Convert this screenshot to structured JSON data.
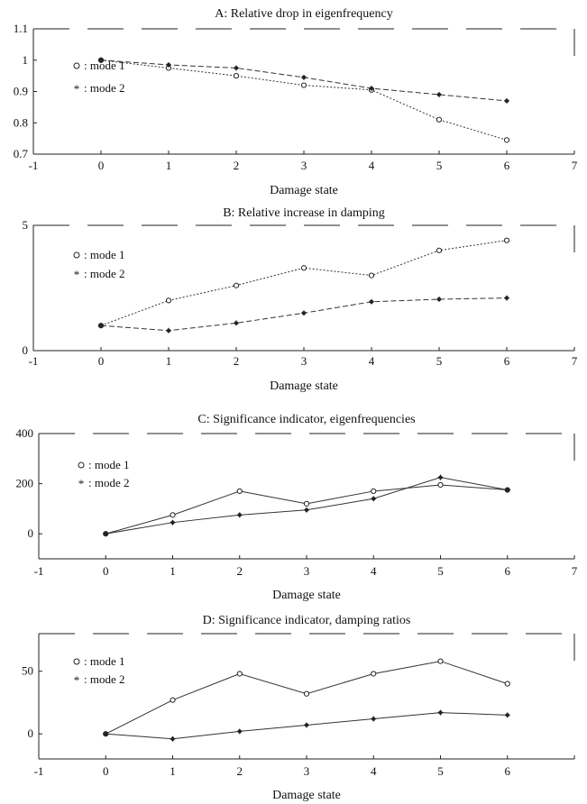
{
  "chart_data": [
    {
      "id": "A",
      "type": "line",
      "title": "A: Relative drop in eigenfrequency",
      "xlabel": "Damage state",
      "ylabel": "",
      "xlim": [
        -1,
        7
      ],
      "ylim": [
        0.7,
        1.1
      ],
      "xticks": [
        "-1",
        "0",
        "1",
        "2",
        "3",
        "4",
        "5",
        "6",
        "7"
      ],
      "yticks": [
        "0.7",
        "0.8",
        "0.9",
        "1",
        "1.1"
      ],
      "ytick_values": [
        0.7,
        0.8,
        0.9,
        1.0,
        1.1
      ],
      "legend": [
        {
          "marker": "o",
          "text": ": mode 1"
        },
        {
          "marker": "*",
          "text": ": mode 2"
        }
      ],
      "line_style": "dashed",
      "series": [
        {
          "marker": "o",
          "x": [
            0,
            1,
            2,
            3,
            4,
            5,
            6
          ],
          "values": [
            1.0,
            0.975,
            0.95,
            0.92,
            0.905,
            0.81,
            0.745
          ]
        },
        {
          "marker": "*",
          "x": [
            0,
            1,
            2,
            3,
            4,
            5,
            6
          ],
          "values": [
            1.0,
            0.985,
            0.975,
            0.945,
            0.91,
            0.89,
            0.87
          ]
        }
      ]
    },
    {
      "id": "B",
      "type": "line",
      "title": "B: Relative increase in damping",
      "xlabel": "Damage state",
      "ylabel": "",
      "xlim": [
        -1,
        7
      ],
      "ylim": [
        0,
        5
      ],
      "xticks": [
        "-1",
        "0",
        "1",
        "2",
        "3",
        "4",
        "5",
        "6",
        "7"
      ],
      "yticks": [
        "0",
        "5"
      ],
      "ytick_values": [
        0,
        5
      ],
      "legend": [
        {
          "marker": "o",
          "text": ": mode 1"
        },
        {
          "marker": "*",
          "text": ": mode 2"
        }
      ],
      "line_style": "dashed",
      "series": [
        {
          "marker": "o",
          "x": [
            0,
            1,
            2,
            3,
            4,
            5,
            6
          ],
          "values": [
            1.0,
            2.0,
            2.6,
            3.3,
            3.0,
            4.0,
            4.4
          ]
        },
        {
          "marker": "*",
          "x": [
            0,
            1,
            2,
            3,
            4,
            5,
            6
          ],
          "values": [
            1.0,
            0.8,
            1.1,
            1.5,
            1.95,
            2.05,
            2.1
          ]
        }
      ]
    },
    {
      "id": "C",
      "type": "line",
      "title": "C: Significance indicator, eigenfrequencies",
      "xlabel": "Damage state",
      "ylabel": "",
      "xlim": [
        -1,
        7
      ],
      "ylim": [
        -100,
        400
      ],
      "xticks": [
        "-1",
        "0",
        "1",
        "2",
        "3",
        "4",
        "5",
        "6",
        "7"
      ],
      "yticks": [
        "0",
        "200",
        "400"
      ],
      "ytick_values": [
        0,
        200,
        400
      ],
      "legend": [
        {
          "marker": "o",
          "text": ": mode 1"
        },
        {
          "marker": "*",
          "text": ": mode 2"
        }
      ],
      "line_style": "solid",
      "series": [
        {
          "marker": "o",
          "x": [
            0,
            1,
            2,
            3,
            4,
            5,
            6
          ],
          "values": [
            0,
            75,
            170,
            120,
            170,
            195,
            175
          ]
        },
        {
          "marker": "*",
          "x": [
            0,
            1,
            2,
            3,
            4,
            5,
            6
          ],
          "values": [
            0,
            45,
            75,
            95,
            140,
            225,
            175
          ]
        }
      ]
    },
    {
      "id": "D",
      "type": "line",
      "title": "D: Significance indicator, damping ratios",
      "xlabel": "Damage state",
      "ylabel": "",
      "xlim": [
        -1,
        7
      ],
      "ylim": [
        -20,
        80
      ],
      "xticks": [
        "-1",
        "0",
        "1",
        "2",
        "3",
        "4",
        "5",
        "6",
        ""
      ],
      "yticks": [
        "0",
        "50"
      ],
      "ytick_values": [
        0,
        50
      ],
      "legend": [
        {
          "marker": "o",
          "text": ": mode 1"
        },
        {
          "marker": "*",
          "text": ": mode 2"
        }
      ],
      "line_style": "solid",
      "series": [
        {
          "marker": "o",
          "x": [
            0,
            1,
            2,
            3,
            4,
            5,
            6
          ],
          "values": [
            0,
            27,
            48,
            32,
            48,
            58,
            40
          ]
        },
        {
          "marker": "*",
          "x": [
            0,
            1,
            2,
            3,
            4,
            5,
            6
          ],
          "values": [
            0,
            -4,
            2,
            7,
            12,
            17,
            15
          ]
        }
      ]
    }
  ]
}
